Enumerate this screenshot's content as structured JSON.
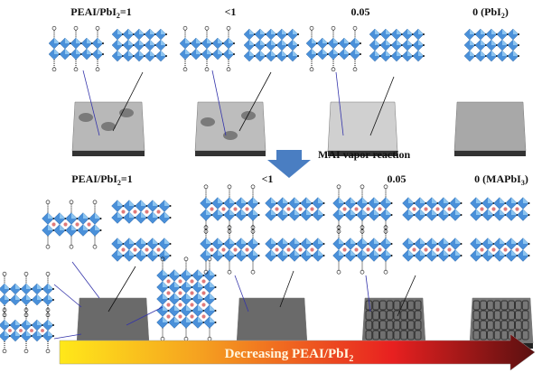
{
  "top_labels": [
    {
      "main": "PEAI/PbI",
      "sub": "2",
      "tail": "=1"
    },
    {
      "main": "<1",
      "sub": "",
      "tail": ""
    },
    {
      "main": "0.05",
      "sub": "",
      "tail": ""
    },
    {
      "main": "0 (PbI",
      "sub": "2",
      "tail": ")"
    }
  ],
  "process": {
    "label": "MAI vapor reaction",
    "arrow_color": "#4a7ec2"
  },
  "bottom_labels": [
    {
      "main": "PEAI/PbI",
      "sub": "2",
      "tail": "=1"
    },
    {
      "main": "<1",
      "sub": "",
      "tail": ""
    },
    {
      "main": "0.05",
      "sub": "",
      "tail": ""
    },
    {
      "main": "0 (MAPbI",
      "sub": "3",
      "tail": ")"
    }
  ],
  "gradient_arrow": {
    "main": "Decreasing PEAI/PbI",
    "sub": "2",
    "colors": [
      "#ffe81a",
      "#f5a020",
      "#e82020",
      "#5a1010"
    ]
  },
  "colors": {
    "octahedron": "#4a90d9",
    "octahedron_light": "#8cc4f0",
    "cation": "#e07a7a"
  }
}
